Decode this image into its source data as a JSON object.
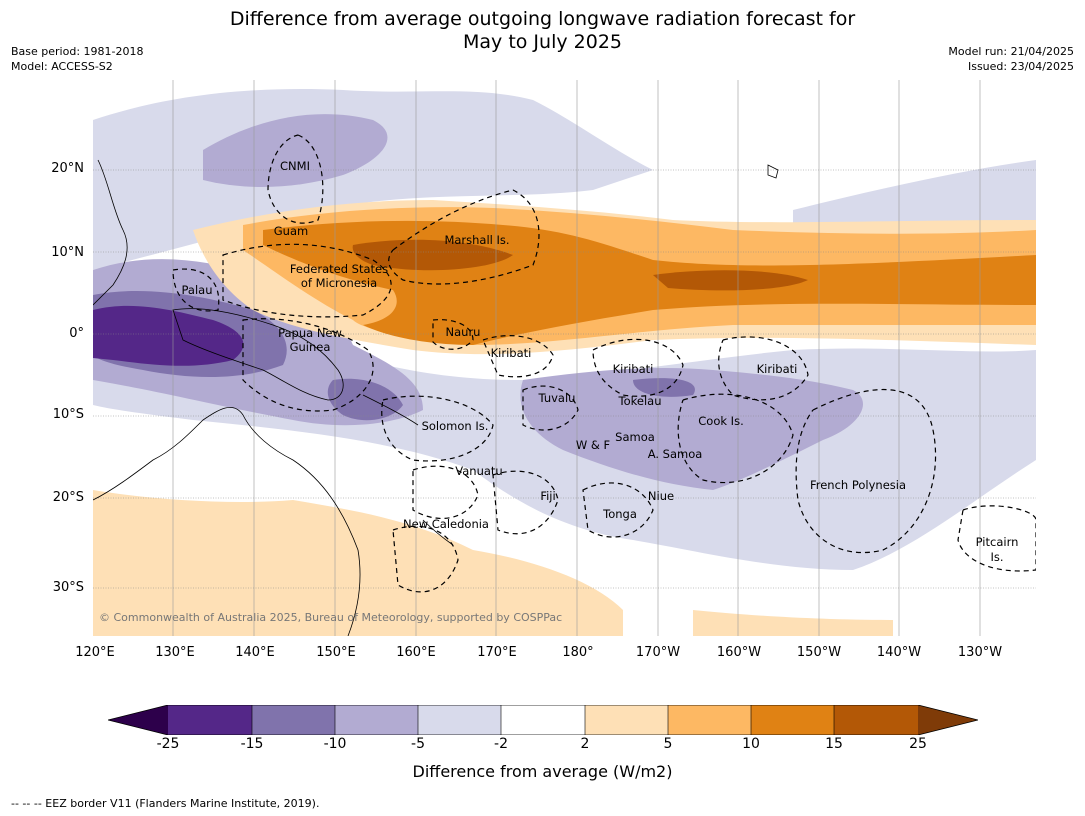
{
  "title_line1": "Difference from average outgoing longwave radiation forecast for",
  "title_line2": "May to July 2025",
  "base_period": "Base period: 1981-2018",
  "model": "Model: ACCESS-S2",
  "model_run": "Model run: 21/04/2025",
  "issued": "Issued: 23/04/2025",
  "lat_labels": [
    "20°N",
    "10°N",
    "0°",
    "10°S",
    "20°S",
    "30°S"
  ],
  "lon_labels": [
    "120°E",
    "130°E",
    "140°E",
    "150°E",
    "160°E",
    "170°E",
    "180°",
    "170°W",
    "160°W",
    "150°W",
    "140°W",
    "130°W"
  ],
  "copyright": "© Commonwealth of Australia 2025, Bureau of Meteorology, supported by COSPPac",
  "places": {
    "cnmi": "CNMI",
    "guam": "Guam",
    "marshall": "Marshall Is.",
    "fsm1": "Federated States",
    "fsm2": "of Micronesia",
    "palau": "Palau",
    "png1": "Papua New",
    "png2": "Guinea",
    "nauru": "Nauru",
    "kiribati_w": "Kiribati",
    "kiribati_c": "Kiribati",
    "kiribati_e": "Kiribati",
    "tuvalu": "Tuvalu",
    "tokelau": "Tokelau",
    "cook": "Cook Is.",
    "solomon": "Solomon Is.",
    "samoa": "Samoa",
    "wf": "W & F",
    "asamoa": "A. Samoa",
    "vanuatu": "Vanuatu",
    "fiji": "Fiji",
    "niue": "Niue",
    "tonga": "Tonga",
    "frpoly": "French Polynesia",
    "newcal": "New Caledonia",
    "pitcairn1": "Pitcairn",
    "pitcairn2": "Is."
  },
  "colorbar": {
    "ticks": [
      "-25",
      "-15",
      "-10",
      "-5",
      "-2",
      "2",
      "5",
      "10",
      "15",
      "25"
    ],
    "colors": [
      "#2d004b",
      "#542788",
      "#8073ac",
      "#b2abd2",
      "#d8daeb",
      "#ffffff",
      "#fee0b6",
      "#fdb863",
      "#e08214",
      "#b35806",
      "#7f3b08"
    ],
    "label": "Difference from average (W/m2)"
  },
  "footnote": "-- -- -- EEZ border V11 (Flanders Marine Institute, 2019)."
}
